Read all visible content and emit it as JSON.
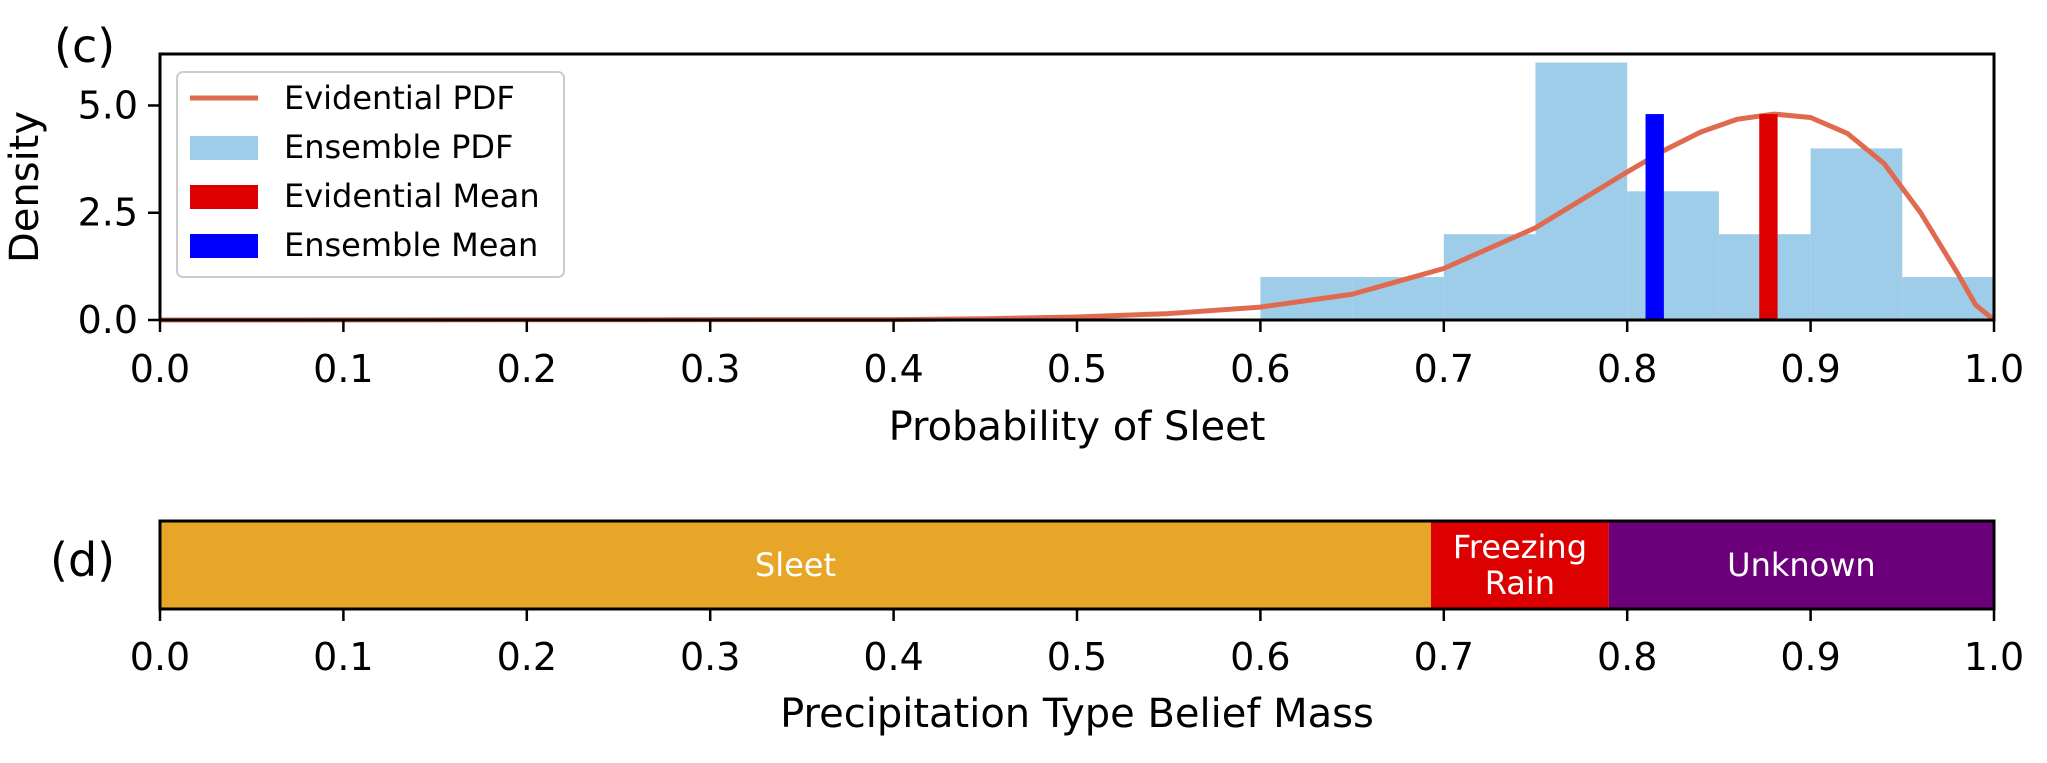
{
  "chart_data": [
    {
      "panel_label": "(c)",
      "type": "bar",
      "xlabel": "Probability of Sleet",
      "ylabel": "Density",
      "xlim": [
        0.0,
        1.0
      ],
      "ylim": [
        0.0,
        6.2
      ],
      "x_ticks": [
        "0.0",
        "0.1",
        "0.2",
        "0.3",
        "0.4",
        "0.5",
        "0.6",
        "0.7",
        "0.8",
        "0.9",
        "1.0"
      ],
      "y_ticks": [
        "0.0",
        "2.5",
        "5.0"
      ],
      "grid": false,
      "legend_position": "top-left",
      "legend": [
        {
          "label": "Evidential PDF",
          "kind": "line",
          "color": "#e06a4f"
        },
        {
          "label": "Ensemble PDF",
          "kind": "patch",
          "color": "#9ecde9"
        },
        {
          "label": "Evidential Mean",
          "kind": "patch",
          "color": "#dd0000"
        },
        {
          "label": "Ensemble Mean",
          "kind": "patch",
          "color": "#0000ff"
        }
      ],
      "histogram": {
        "name": "Ensemble PDF",
        "color": "#9ecde9",
        "bins": [
          {
            "x0": 0.6,
            "x1": 0.65,
            "density": 1.0
          },
          {
            "x0": 0.65,
            "x1": 0.7,
            "density": 1.0
          },
          {
            "x0": 0.7,
            "x1": 0.75,
            "density": 2.0
          },
          {
            "x0": 0.75,
            "x1": 0.8,
            "density": 6.0
          },
          {
            "x0": 0.8,
            "x1": 0.85,
            "density": 3.0
          },
          {
            "x0": 0.85,
            "x1": 0.9,
            "density": 2.0
          },
          {
            "x0": 0.9,
            "x1": 0.95,
            "density": 4.0
          },
          {
            "x0": 0.95,
            "x1": 1.0,
            "density": 1.0
          }
        ]
      },
      "evidential_pdf": {
        "name": "Evidential PDF",
        "color": "#e06a4f",
        "x": [
          0.0,
          0.4,
          0.45,
          0.5,
          0.55,
          0.6,
          0.65,
          0.7,
          0.75,
          0.8,
          0.82,
          0.84,
          0.86,
          0.88,
          0.9,
          0.92,
          0.94,
          0.96,
          0.98,
          0.99,
          1.0
        ],
        "y": [
          0.0,
          0.01,
          0.03,
          0.07,
          0.15,
          0.3,
          0.6,
          1.2,
          2.15,
          3.45,
          3.95,
          4.38,
          4.68,
          4.8,
          4.72,
          4.35,
          3.65,
          2.5,
          1.1,
          0.35,
          0.0
        ]
      },
      "evidential_mean": {
        "name": "Evidential Mean",
        "x": 0.877,
        "height": 4.8,
        "width": 0.01,
        "color": "#dd0000"
      },
      "ensemble_mean": {
        "name": "Ensemble Mean",
        "x": 0.815,
        "height": 4.8,
        "width": 0.01,
        "color": "#0000ff"
      }
    },
    {
      "panel_label": "(d)",
      "type": "bar",
      "xlabel": "Precipitation Type Belief Mass",
      "xlim": [
        0.0,
        1.0
      ],
      "x_ticks": [
        "0.0",
        "0.1",
        "0.2",
        "0.3",
        "0.4",
        "0.5",
        "0.6",
        "0.7",
        "0.8",
        "0.9",
        "1.0"
      ],
      "segments": [
        {
          "label_lines": [
            "Sleet"
          ],
          "start": 0.0,
          "end": 0.693,
          "color": "#e8a628"
        },
        {
          "label_lines": [
            "Freezing",
            "Rain"
          ],
          "start": 0.693,
          "end": 0.79,
          "color": "#dd0000"
        },
        {
          "label_lines": [
            "Unknown"
          ],
          "start": 0.79,
          "end": 1.0,
          "color": "#6b007a"
        }
      ]
    }
  ]
}
